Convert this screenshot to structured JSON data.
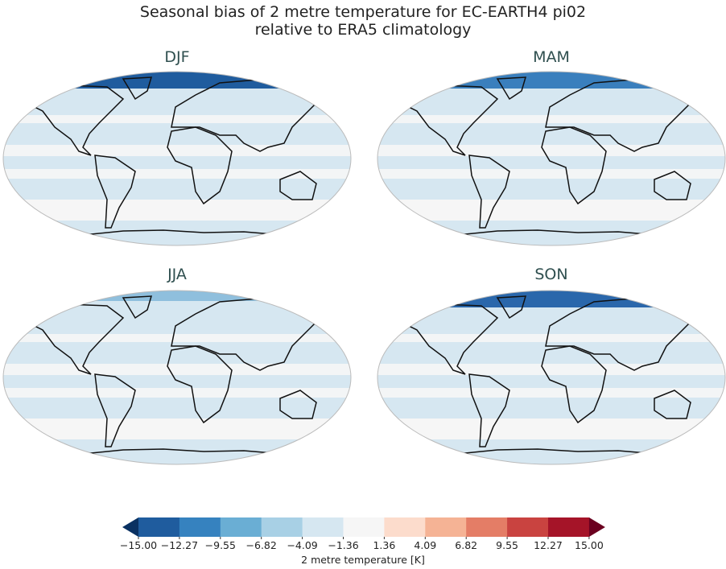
{
  "title_line1": "Seasonal bias of 2 metre temperature for EC-EARTH4 pi02",
  "title_line2": "relative to ERA5 climatology",
  "panels": [
    {
      "season": "DJF",
      "arctic": "#1f5c9e"
    },
    {
      "season": "MAM",
      "arctic": "#3a7fbd"
    },
    {
      "season": "JJA",
      "arctic": "#8fbfdd"
    },
    {
      "season": "SON",
      "arctic": "#2a67ab"
    }
  ],
  "colorbar": {
    "label": "2 metre temperature [K]",
    "ticks": [
      "−15.00",
      "−12.27",
      "−9.55",
      "−6.82",
      "−4.09",
      "−1.36",
      "1.36",
      "4.09",
      "6.82",
      "9.55",
      "12.27",
      "15.00"
    ],
    "colors": [
      "#1f5c9e",
      "#3682bf",
      "#6aaed4",
      "#a8d0e5",
      "#d6e7f1",
      "#f6f6f6",
      "#fcdccc",
      "#f5b395",
      "#e47d66",
      "#c94340",
      "#a51428"
    ],
    "under_color": "#0a3162",
    "over_color": "#6b0020"
  }
}
